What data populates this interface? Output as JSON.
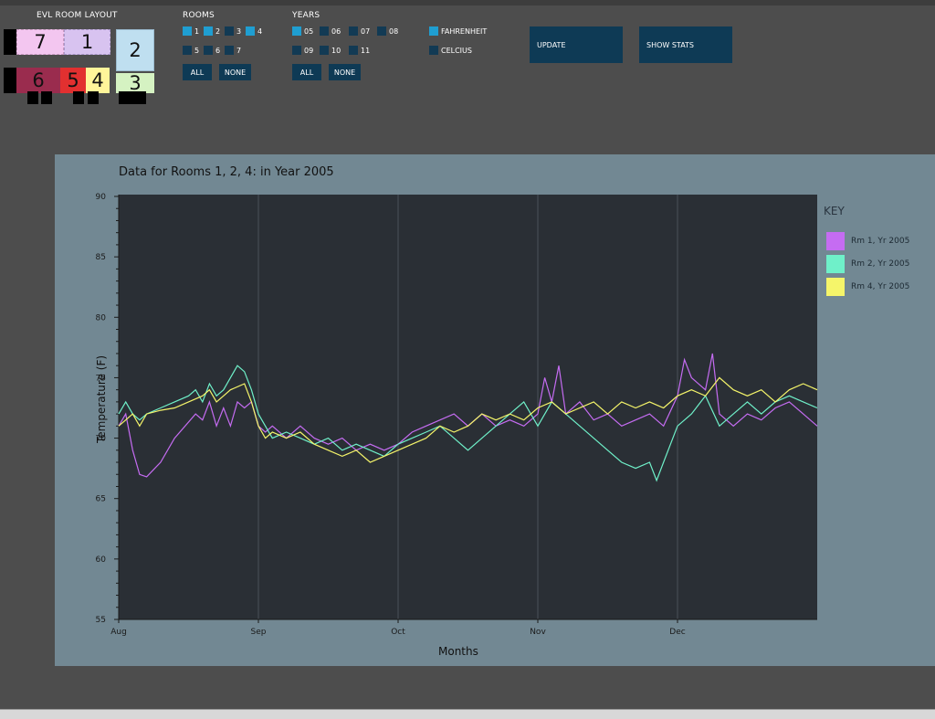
{
  "room_layout": {
    "title": "EVL ROOM LAYOUT",
    "rooms": [
      {
        "id": "7",
        "label": "7",
        "color": "#f3c6f0"
      },
      {
        "id": "1",
        "label": "1",
        "color": "#d8c3f0"
      },
      {
        "id": "2",
        "label": "2",
        "color": "#bfdff0"
      },
      {
        "id": "6",
        "label": "6",
        "color": "#9a2c4e"
      },
      {
        "id": "5",
        "label": "5",
        "color": "#e23030"
      },
      {
        "id": "4",
        "label": "4",
        "color": "#fff59a"
      },
      {
        "id": "3",
        "label": "3",
        "color": "#d5f2c2"
      }
    ]
  },
  "rooms_filter": {
    "title": "ROOMS",
    "items": [
      {
        "label": "1",
        "checked": true
      },
      {
        "label": "2",
        "checked": true
      },
      {
        "label": "3",
        "checked": false
      },
      {
        "label": "4",
        "checked": true
      },
      {
        "label": "5",
        "checked": false
      },
      {
        "label": "6",
        "checked": false
      },
      {
        "label": "7",
        "checked": false
      }
    ],
    "all_label": "ALL",
    "none_label": "NONE"
  },
  "years_filter": {
    "title": "YEARS",
    "items": [
      {
        "label": "05",
        "checked": true
      },
      {
        "label": "06",
        "checked": false
      },
      {
        "label": "07",
        "checked": false
      },
      {
        "label": "08",
        "checked": false
      },
      {
        "label": "09",
        "checked": false
      },
      {
        "label": "10",
        "checked": false
      },
      {
        "label": "11",
        "checked": false
      }
    ],
    "all_label": "ALL",
    "none_label": "NONE"
  },
  "units": {
    "items": [
      {
        "label": "FAHRENHEIT",
        "checked": true
      },
      {
        "label": "CELCIUS",
        "checked": false
      }
    ]
  },
  "actions": {
    "update_label": "UPDATE",
    "show_stats_label": "SHOW STATS"
  },
  "colors": {
    "checked": "#1f9ed1",
    "unchecked": "#123a54",
    "button": "#0e3a55",
    "panel": "#728893",
    "plot_bg": "#2a2f35"
  },
  "chart_data": {
    "type": "line",
    "title": "Data for Rooms 1, 2, 4: in Year 2005",
    "xlabel": "Months",
    "ylabel": "Temperature (F)",
    "ylim": [
      55,
      90
    ],
    "yticks": [
      55,
      60,
      65,
      70,
      75,
      80,
      85,
      90
    ],
    "xlim": [
      0,
      5
    ],
    "xticks": [
      {
        "label": "Aug",
        "x": 0
      },
      {
        "label": "Sep",
        "x": 1
      },
      {
        "label": "Oct",
        "x": 2
      },
      {
        "label": "Nov",
        "x": 3
      },
      {
        "label": "Dec",
        "x": 4
      }
    ],
    "grid": "vertical",
    "legend": {
      "title": "KEY",
      "placement": "right"
    },
    "series": [
      {
        "name": "Rm 1, Yr 2005",
        "color": "#c56cf2",
        "points": [
          [
            0,
            71
          ],
          [
            0.05,
            72
          ],
          [
            0.1,
            69
          ],
          [
            0.15,
            67
          ],
          [
            0.2,
            66.8
          ],
          [
            0.3,
            68
          ],
          [
            0.4,
            70
          ],
          [
            0.55,
            72
          ],
          [
            0.6,
            71.5
          ],
          [
            0.65,
            73
          ],
          [
            0.7,
            71
          ],
          [
            0.75,
            72.5
          ],
          [
            0.8,
            71
          ],
          [
            0.85,
            73
          ],
          [
            0.9,
            72.5
          ],
          [
            0.95,
            73
          ],
          [
            1,
            71
          ],
          [
            1.05,
            70.5
          ],
          [
            1.1,
            71
          ],
          [
            1.2,
            70
          ],
          [
            1.3,
            71
          ],
          [
            1.4,
            70
          ],
          [
            1.5,
            69.5
          ],
          [
            1.6,
            70
          ],
          [
            1.7,
            69
          ],
          [
            1.8,
            69.5
          ],
          [
            1.9,
            69
          ],
          [
            2,
            69.5
          ],
          [
            2.1,
            70.5
          ],
          [
            2.2,
            71
          ],
          [
            2.3,
            71.5
          ],
          [
            2.4,
            72
          ],
          [
            2.5,
            71
          ],
          [
            2.6,
            72
          ],
          [
            2.7,
            71
          ],
          [
            2.8,
            71.5
          ],
          [
            2.9,
            71
          ],
          [
            3,
            72
          ],
          [
            3.05,
            75
          ],
          [
            3.1,
            73
          ],
          [
            3.15,
            76
          ],
          [
            3.2,
            72
          ],
          [
            3.3,
            73
          ],
          [
            3.4,
            71.5
          ],
          [
            3.5,
            72
          ],
          [
            3.6,
            71
          ],
          [
            3.7,
            71.5
          ],
          [
            3.8,
            72
          ],
          [
            3.9,
            71
          ],
          [
            4,
            73.5
          ],
          [
            4.05,
            76.5
          ],
          [
            4.1,
            75
          ],
          [
            4.2,
            74
          ],
          [
            4.25,
            77
          ],
          [
            4.3,
            72
          ],
          [
            4.4,
            71
          ],
          [
            4.5,
            72
          ],
          [
            4.6,
            71.5
          ],
          [
            4.7,
            72.5
          ],
          [
            4.8,
            73
          ],
          [
            4.9,
            72
          ],
          [
            5,
            71
          ]
        ]
      },
      {
        "name": "Rm 2, Yr 2005",
        "color": "#6ff0c9",
        "points": [
          [
            0,
            72
          ],
          [
            0.05,
            73
          ],
          [
            0.1,
            72
          ],
          [
            0.15,
            71.5
          ],
          [
            0.2,
            72
          ],
          [
            0.3,
            72.5
          ],
          [
            0.4,
            73
          ],
          [
            0.5,
            73.5
          ],
          [
            0.55,
            74
          ],
          [
            0.6,
            73
          ],
          [
            0.65,
            74.5
          ],
          [
            0.7,
            73.5
          ],
          [
            0.75,
            74
          ],
          [
            0.8,
            75
          ],
          [
            0.85,
            76
          ],
          [
            0.9,
            75.5
          ],
          [
            0.95,
            74
          ],
          [
            1,
            72
          ],
          [
            1.05,
            71
          ],
          [
            1.1,
            70
          ],
          [
            1.2,
            70.5
          ],
          [
            1.3,
            70
          ],
          [
            1.4,
            69.5
          ],
          [
            1.5,
            70
          ],
          [
            1.6,
            69
          ],
          [
            1.7,
            69.5
          ],
          [
            1.8,
            69
          ],
          [
            1.9,
            68.5
          ],
          [
            2,
            69.5
          ],
          [
            2.1,
            70
          ],
          [
            2.2,
            70.5
          ],
          [
            2.3,
            71
          ],
          [
            2.4,
            70
          ],
          [
            2.5,
            69
          ],
          [
            2.6,
            70
          ],
          [
            2.7,
            71
          ],
          [
            2.8,
            72
          ],
          [
            2.9,
            73
          ],
          [
            3,
            71
          ],
          [
            3.1,
            73
          ],
          [
            3.2,
            72
          ],
          [
            3.3,
            71
          ],
          [
            3.4,
            70
          ],
          [
            3.5,
            69
          ],
          [
            3.6,
            68
          ],
          [
            3.7,
            67.5
          ],
          [
            3.8,
            68
          ],
          [
            3.85,
            66.5
          ],
          [
            3.9,
            68
          ],
          [
            4,
            71
          ],
          [
            4.1,
            72
          ],
          [
            4.2,
            73.5
          ],
          [
            4.3,
            71
          ],
          [
            4.4,
            72
          ],
          [
            4.5,
            73
          ],
          [
            4.6,
            72
          ],
          [
            4.7,
            73
          ],
          [
            4.8,
            73.5
          ],
          [
            4.9,
            73
          ],
          [
            5,
            72.5
          ]
        ]
      },
      {
        "name": "Rm 4, Yr 2005",
        "color": "#f5f56a",
        "points": [
          [
            0,
            71
          ],
          [
            0.05,
            71.5
          ],
          [
            0.1,
            72
          ],
          [
            0.15,
            71
          ],
          [
            0.2,
            72
          ],
          [
            0.3,
            72.3
          ],
          [
            0.4,
            72.5
          ],
          [
            0.5,
            73
          ],
          [
            0.6,
            73.5
          ],
          [
            0.65,
            74
          ],
          [
            0.7,
            73
          ],
          [
            0.75,
            73.5
          ],
          [
            0.8,
            74
          ],
          [
            0.9,
            74.5
          ],
          [
            0.95,
            73
          ],
          [
            1,
            71
          ],
          [
            1.05,
            70
          ],
          [
            1.1,
            70.5
          ],
          [
            1.2,
            70
          ],
          [
            1.3,
            70.5
          ],
          [
            1.4,
            69.5
          ],
          [
            1.5,
            69
          ],
          [
            1.6,
            68.5
          ],
          [
            1.7,
            69
          ],
          [
            1.8,
            68
          ],
          [
            1.9,
            68.5
          ],
          [
            2,
            69
          ],
          [
            2.1,
            69.5
          ],
          [
            2.2,
            70
          ],
          [
            2.3,
            71
          ],
          [
            2.4,
            70.5
          ],
          [
            2.5,
            71
          ],
          [
            2.6,
            72
          ],
          [
            2.7,
            71.5
          ],
          [
            2.8,
            72
          ],
          [
            2.9,
            71.5
          ],
          [
            3,
            72.5
          ],
          [
            3.1,
            73
          ],
          [
            3.2,
            72
          ],
          [
            3.3,
            72.5
          ],
          [
            3.4,
            73
          ],
          [
            3.5,
            72
          ],
          [
            3.6,
            73
          ],
          [
            3.7,
            72.5
          ],
          [
            3.8,
            73
          ],
          [
            3.9,
            72.5
          ],
          [
            4,
            73.5
          ],
          [
            4.1,
            74
          ],
          [
            4.2,
            73.5
          ],
          [
            4.3,
            75
          ],
          [
            4.4,
            74
          ],
          [
            4.5,
            73.5
          ],
          [
            4.6,
            74
          ],
          [
            4.7,
            73
          ],
          [
            4.8,
            74
          ],
          [
            4.9,
            74.5
          ],
          [
            5,
            74
          ]
        ]
      }
    ]
  }
}
